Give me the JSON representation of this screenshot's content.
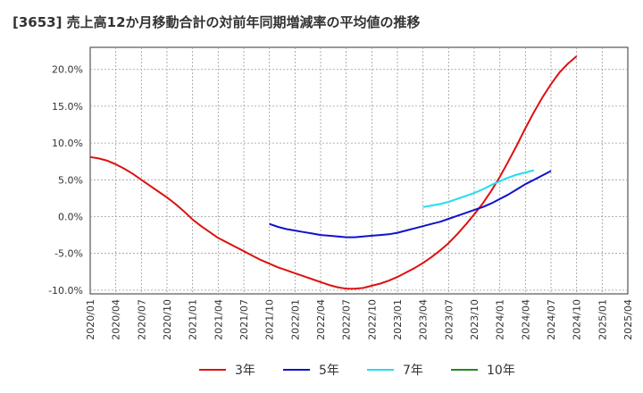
{
  "chart_data": {
    "type": "line",
    "title": "[3653]  売上高12か月移動合計の対前年同期増減率の平均値の推移",
    "xlabel": "",
    "ylabel": "",
    "ylim": [
      -10.5,
      23
    ],
    "y_ticks": [
      20.0,
      15.0,
      10.0,
      5.0,
      0.0,
      -5.0,
      -10.0
    ],
    "y_tick_labels": [
      "20.0%",
      "15.0%",
      "10.0%",
      "5.0%",
      "0.0%",
      "-5.0%",
      "-10.0%"
    ],
    "x_tick_labels": [
      "2020/01",
      "2020/04",
      "2020/07",
      "2020/10",
      "2021/01",
      "2021/04",
      "2021/07",
      "2021/10",
      "2022/01",
      "2022/04",
      "2022/07",
      "2022/10",
      "2023/01",
      "2023/04",
      "2023/07",
      "2023/10",
      "2024/01",
      "2024/04",
      "2024/07",
      "2024/10",
      "2025/01",
      "2025/04"
    ],
    "grid": true,
    "legend_position": "bottom",
    "series": [
      {
        "name": "3年",
        "color": "#dd1111",
        "points": [
          [
            "2020/01",
            8.1
          ],
          [
            "2020/02",
            7.9
          ],
          [
            "2020/03",
            7.6
          ],
          [
            "2020/04",
            7.1
          ],
          [
            "2020/05",
            6.5
          ],
          [
            "2020/06",
            5.8
          ],
          [
            "2020/07",
            5.0
          ],
          [
            "2020/08",
            4.2
          ],
          [
            "2020/09",
            3.4
          ],
          [
            "2020/10",
            2.6
          ],
          [
            "2020/11",
            1.7
          ],
          [
            "2020/12",
            0.7
          ],
          [
            "2021/01",
            -0.4
          ],
          [
            "2021/02",
            -1.3
          ],
          [
            "2021/03",
            -2.1
          ],
          [
            "2021/04",
            -2.9
          ],
          [
            "2021/05",
            -3.5
          ],
          [
            "2021/06",
            -4.1
          ],
          [
            "2021/07",
            -4.7
          ],
          [
            "2021/08",
            -5.3
          ],
          [
            "2021/09",
            -5.9
          ],
          [
            "2021/10",
            -6.4
          ],
          [
            "2021/11",
            -6.9
          ],
          [
            "2021/12",
            -7.3
          ],
          [
            "2022/01",
            -7.7
          ],
          [
            "2022/02",
            -8.1
          ],
          [
            "2022/03",
            -8.5
          ],
          [
            "2022/04",
            -8.9
          ],
          [
            "2022/05",
            -9.3
          ],
          [
            "2022/06",
            -9.6
          ],
          [
            "2022/07",
            -9.8
          ],
          [
            "2022/08",
            -9.8
          ],
          [
            "2022/09",
            -9.7
          ],
          [
            "2022/10",
            -9.4
          ],
          [
            "2022/11",
            -9.1
          ],
          [
            "2022/12",
            -8.7
          ],
          [
            "2023/01",
            -8.2
          ],
          [
            "2023/02",
            -7.6
          ],
          [
            "2023/03",
            -7.0
          ],
          [
            "2023/04",
            -6.3
          ],
          [
            "2023/05",
            -5.5
          ],
          [
            "2023/06",
            -4.6
          ],
          [
            "2023/07",
            -3.6
          ],
          [
            "2023/08",
            -2.4
          ],
          [
            "2023/09",
            -1.1
          ],
          [
            "2023/10",
            0.3
          ],
          [
            "2023/11",
            1.8
          ],
          [
            "2023/12",
            3.5
          ],
          [
            "2024/01",
            5.4
          ],
          [
            "2024/02",
            7.5
          ],
          [
            "2024/03",
            9.7
          ],
          [
            "2024/04",
            12.0
          ],
          [
            "2024/05",
            14.2
          ],
          [
            "2024/06",
            16.2
          ],
          [
            "2024/07",
            18.0
          ],
          [
            "2024/08",
            19.6
          ],
          [
            "2024/09",
            20.8
          ],
          [
            "2024/10",
            21.8
          ]
        ]
      },
      {
        "name": "5年",
        "color": "#1111cc",
        "points": [
          [
            "2021/10",
            -1.0
          ],
          [
            "2021/11",
            -1.4
          ],
          [
            "2021/12",
            -1.7
          ],
          [
            "2022/01",
            -1.9
          ],
          [
            "2022/02",
            -2.1
          ],
          [
            "2022/03",
            -2.3
          ],
          [
            "2022/04",
            -2.5
          ],
          [
            "2022/05",
            -2.6
          ],
          [
            "2022/06",
            -2.7
          ],
          [
            "2022/07",
            -2.8
          ],
          [
            "2022/08",
            -2.8
          ],
          [
            "2022/09",
            -2.7
          ],
          [
            "2022/10",
            -2.6
          ],
          [
            "2022/11",
            -2.5
          ],
          [
            "2022/12",
            -2.4
          ],
          [
            "2023/01",
            -2.2
          ],
          [
            "2023/02",
            -1.9
          ],
          [
            "2023/03",
            -1.6
          ],
          [
            "2023/04",
            -1.3
          ],
          [
            "2023/05",
            -1.0
          ],
          [
            "2023/06",
            -0.7
          ],
          [
            "2023/07",
            -0.3
          ],
          [
            "2023/08",
            0.1
          ],
          [
            "2023/09",
            0.5
          ],
          [
            "2023/10",
            0.9
          ],
          [
            "2023/11",
            1.3
          ],
          [
            "2023/12",
            1.8
          ],
          [
            "2024/01",
            2.4
          ],
          [
            "2024/02",
            3.0
          ],
          [
            "2024/03",
            3.7
          ],
          [
            "2024/04",
            4.4
          ],
          [
            "2024/05",
            5.0
          ],
          [
            "2024/06",
            5.6
          ],
          [
            "2024/07",
            6.2
          ]
        ]
      },
      {
        "name": "7年",
        "color": "#22ddee",
        "points": [
          [
            "2023/04",
            1.3
          ],
          [
            "2023/05",
            1.5
          ],
          [
            "2023/06",
            1.7
          ],
          [
            "2023/07",
            2.0
          ],
          [
            "2023/08",
            2.4
          ],
          [
            "2023/09",
            2.8
          ],
          [
            "2023/10",
            3.2
          ],
          [
            "2023/11",
            3.7
          ],
          [
            "2023/12",
            4.3
          ],
          [
            "2024/01",
            4.8
          ],
          [
            "2024/02",
            5.3
          ],
          [
            "2024/03",
            5.7
          ],
          [
            "2024/04",
            6.0
          ],
          [
            "2024/05",
            6.3
          ]
        ]
      },
      {
        "name": "10年",
        "color": "#228822",
        "points": []
      }
    ]
  }
}
